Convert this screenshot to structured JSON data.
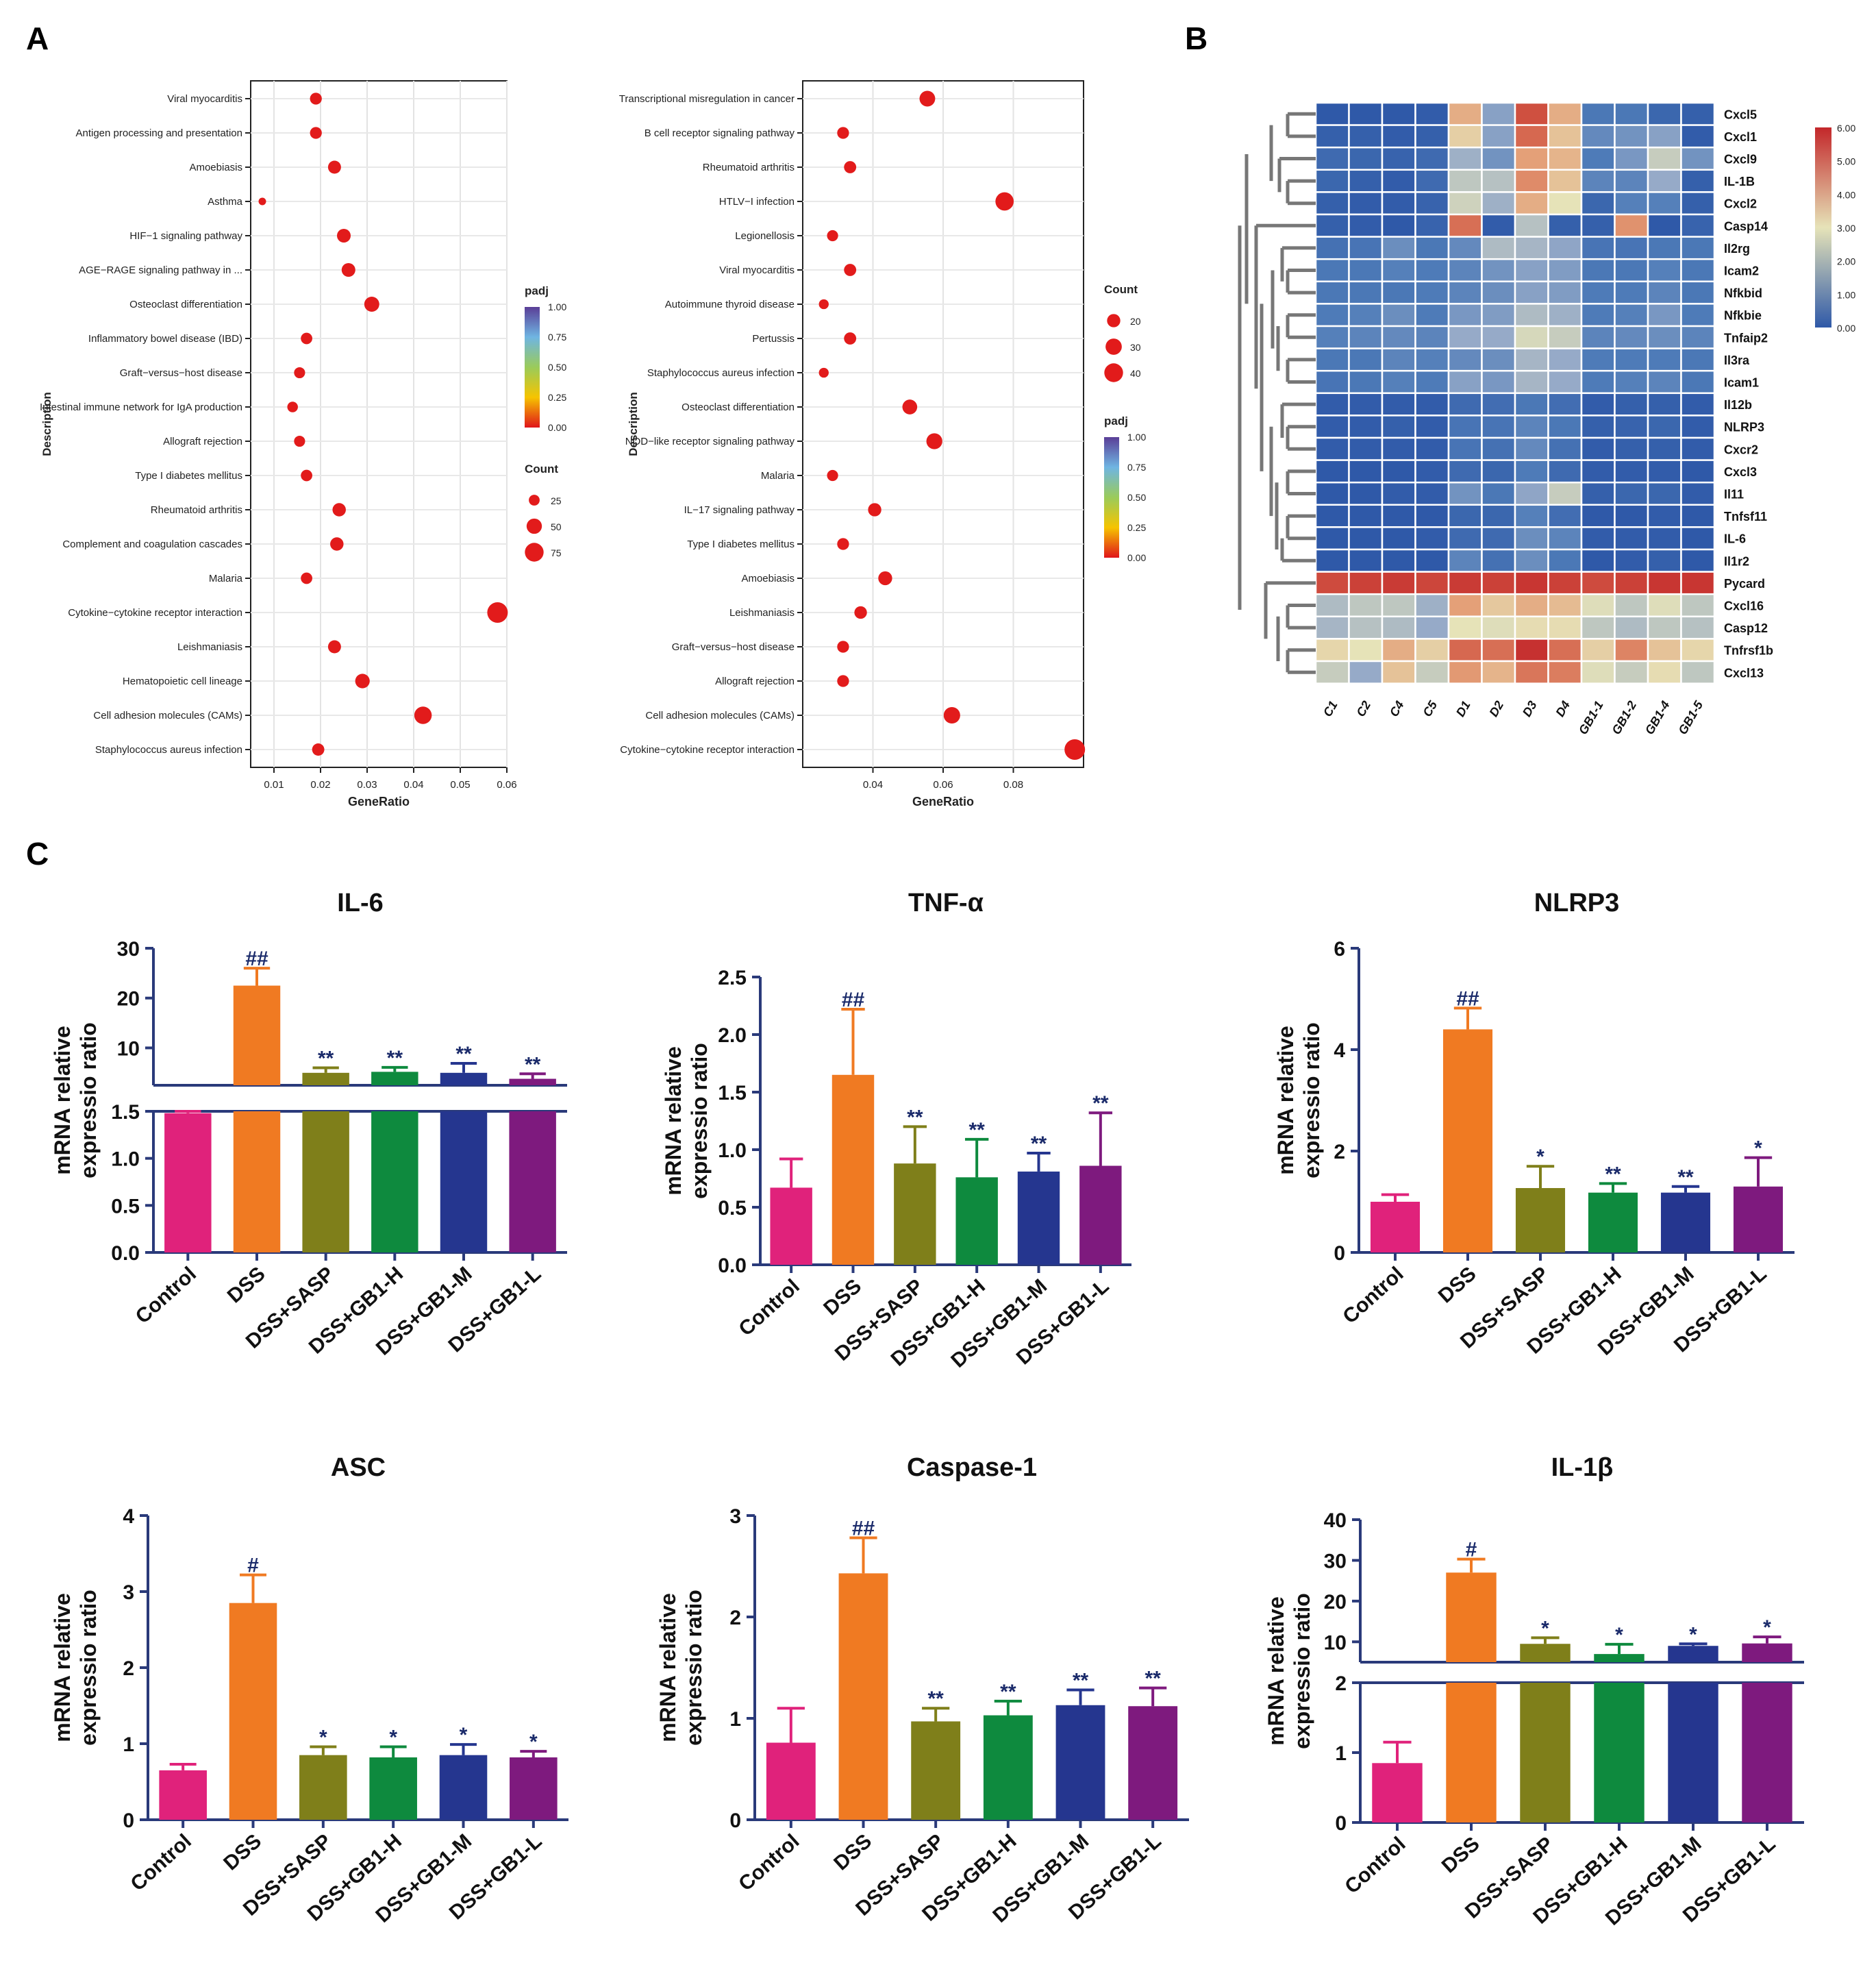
{
  "panel_letters": {
    "a": "A",
    "b": "B",
    "c": "C"
  },
  "colors": {
    "Control": "#E0227B",
    "DSS": "#F07A22",
    "DSS+SASP": "#7F7F1A",
    "DSS+GB1-H": "#0E8A3E",
    "DSS+GB1-M": "#25368F",
    "DSS+GB1-L": "#7E1A7E",
    "axis": "#2A3A7A",
    "dot": "#E21B1B"
  },
  "chart_data": [
    {
      "id": "kegg_left",
      "type": "scatter",
      "panel": "A",
      "xlabel": "GeneRatio",
      "ylabel": "Description",
      "xlim": [
        0.005,
        0.06
      ],
      "xticks": [
        0.01,
        0.02,
        0.03,
        0.04,
        0.05,
        0.06
      ],
      "xtick_labels": [
        "0.01",
        "0.02",
        "0.03",
        "0.04",
        "0.05",
        "0.06"
      ],
      "points": [
        {
          "term": "Viral myocarditis",
          "x": 0.019,
          "count": 30
        },
        {
          "term": "Antigen processing and presentation",
          "x": 0.019,
          "count": 30
        },
        {
          "term": "Amoebiasis",
          "x": 0.023,
          "count": 36
        },
        {
          "term": "Asthma",
          "x": 0.0075,
          "count": 12
        },
        {
          "term": "HIF−1 signaling pathway",
          "x": 0.025,
          "count": 40
        },
        {
          "term": "AGE−RAGE signaling pathway in ...",
          "x": 0.026,
          "count": 40
        },
        {
          "term": "Osteoclast differentiation",
          "x": 0.031,
          "count": 48
        },
        {
          "term": "Inflammatory bowel disease (IBD)",
          "x": 0.017,
          "count": 28
        },
        {
          "term": "Graft−versus−host disease",
          "x": 0.0155,
          "count": 26
        },
        {
          "term": "Intestinal immune network for IgA production",
          "x": 0.014,
          "count": 24
        },
        {
          "term": "Allograft rejection",
          "x": 0.0155,
          "count": 26
        },
        {
          "term": "Type I diabetes mellitus",
          "x": 0.017,
          "count": 28
        },
        {
          "term": "Rheumatoid arthritis",
          "x": 0.024,
          "count": 38
        },
        {
          "term": "Complement and coagulation cascades",
          "x": 0.0235,
          "count": 38
        },
        {
          "term": "Malaria",
          "x": 0.017,
          "count": 28
        },
        {
          "term": "Cytokine−cytokine receptor interaction",
          "x": 0.058,
          "count": 90
        },
        {
          "term": "Leishmaniasis",
          "x": 0.023,
          "count": 36
        },
        {
          "term": "Hematopoietic cell lineage",
          "x": 0.029,
          "count": 45
        },
        {
          "term": "Cell adhesion molecules (CAMs)",
          "x": 0.042,
          "count": 65
        },
        {
          "term": "Staphylococcus aureus infection",
          "x": 0.0195,
          "count": 32
        }
      ],
      "padj_legend": {
        "title": "padj",
        "ticks": [
          "1.00",
          "0.75",
          "0.50",
          "0.25",
          "0.00"
        ]
      },
      "count_legend": {
        "title": "Count",
        "items": [
          {
            "label": "25",
            "value": 25
          },
          {
            "label": "50",
            "value": 50
          },
          {
            "label": "75",
            "value": 75
          }
        ]
      }
    },
    {
      "id": "kegg_right",
      "type": "scatter",
      "panel": "A",
      "xlabel": "GeneRatio",
      "ylabel": "Description",
      "xlim": [
        0.02,
        0.1
      ],
      "xticks": [
        0.04,
        0.06,
        0.08
      ],
      "xtick_labels": [
        "0.04",
        "0.06",
        "0.08"
      ],
      "points": [
        {
          "term": "Transcriptional misregulation in cancer",
          "x": 0.0555,
          "count": 28
        },
        {
          "term": "B cell receptor signaling pathway",
          "x": 0.0315,
          "count": 16
        },
        {
          "term": "Rheumatoid arthritis",
          "x": 0.0335,
          "count": 17
        },
        {
          "term": "HTLV−I infection",
          "x": 0.0775,
          "count": 38
        },
        {
          "term": "Legionellosis",
          "x": 0.0285,
          "count": 14
        },
        {
          "term": "Viral myocarditis",
          "x": 0.0335,
          "count": 17
        },
        {
          "term": "Autoimmune thyroid disease",
          "x": 0.026,
          "count": 11
        },
        {
          "term": "Pertussis",
          "x": 0.0335,
          "count": 17
        },
        {
          "term": "Staphylococcus aureus infection",
          "x": 0.026,
          "count": 11
        },
        {
          "term": "Osteoclast differentiation",
          "x": 0.0505,
          "count": 25
        },
        {
          "term": "NOD−like receptor signaling pathway",
          "x": 0.0575,
          "count": 29
        },
        {
          "term": "Malaria",
          "x": 0.0285,
          "count": 14
        },
        {
          "term": "IL−17 signaling pathway",
          "x": 0.0405,
          "count": 20
        },
        {
          "term": "Type I diabetes mellitus",
          "x": 0.0315,
          "count": 16
        },
        {
          "term": "Amoebiasis",
          "x": 0.0435,
          "count": 22
        },
        {
          "term": "Leishmaniasis",
          "x": 0.0365,
          "count": 18
        },
        {
          "term": "Graft−versus−host disease",
          "x": 0.0315,
          "count": 16
        },
        {
          "term": "Allograft rejection",
          "x": 0.0315,
          "count": 16
        },
        {
          "term": "Cell adhesion molecules (CAMs)",
          "x": 0.0625,
          "count": 31
        },
        {
          "term": "Cytokine−cytokine receptor interaction",
          "x": 0.0975,
          "count": 48
        }
      ],
      "count_legend": {
        "title": "Count",
        "items": [
          {
            "label": "20",
            "value": 20
          },
          {
            "label": "30",
            "value": 30
          },
          {
            "label": "40",
            "value": 40
          }
        ]
      },
      "padj_legend": {
        "title": "padj",
        "ticks": [
          "1.00",
          "0.75",
          "0.50",
          "0.25",
          "0.00"
        ]
      }
    },
    {
      "id": "heatmap",
      "type": "heatmap",
      "panel": "B",
      "columns": [
        "C1",
        "C2",
        "C4",
        "C5",
        "D1",
        "D2",
        "D3",
        "D4",
        "GB1-1",
        "GB1-2",
        "GB1-4",
        "GB1-5"
      ],
      "rows": [
        "Cxcl5",
        "Cxcl1",
        "Cxcl9",
        "IL-1B",
        "Cxcl2",
        "Casp14",
        "Il2rg",
        "Icam2",
        "Nfkbid",
        "Nfkbie",
        "Tnfaip2",
        "Il3ra",
        "Icam1",
        "Il12b",
        "NLRP3",
        "Cxcr2",
        "Cxcl3",
        "Il11",
        "Tnfsf11",
        "IL-6",
        "Il1r2",
        "Pycard",
        "Cxcl16",
        "Casp12",
        "Tnfrsf1b",
        "Cxcl13"
      ],
      "values": [
        [
          0.0,
          0.0,
          0.0,
          0.1,
          3.8,
          1.8,
          5.2,
          3.8,
          0.9,
          0.9,
          0.4,
          0.2
        ],
        [
          0.2,
          0.2,
          0.1,
          0.2,
          3.3,
          1.8,
          4.8,
          3.5,
          1.3,
          1.5,
          1.8,
          0.1
        ],
        [
          0.5,
          0.4,
          0.3,
          0.5,
          2.1,
          1.5,
          4.0,
          3.7,
          1.0,
          1.6,
          2.6,
          1.5
        ],
        [
          0.4,
          0.2,
          0.1,
          0.5,
          2.5,
          2.4,
          4.3,
          3.5,
          1.2,
          1.2,
          2.0,
          0.2
        ],
        [
          0.2,
          0.1,
          0.1,
          0.3,
          2.7,
          2.1,
          3.8,
          3.0,
          0.4,
          1.1,
          1.1,
          0.2
        ],
        [
          0.2,
          0.1,
          0.0,
          0.3,
          4.7,
          0.1,
          2.4,
          0.2,
          0.2,
          4.2,
          0.0,
          0.3
        ],
        [
          0.7,
          0.8,
          1.4,
          0.9,
          1.3,
          2.3,
          2.2,
          1.9,
          0.8,
          0.8,
          0.9,
          0.9
        ],
        [
          0.9,
          0.9,
          1.1,
          1.0,
          1.2,
          1.5,
          1.8,
          1.7,
          0.9,
          0.9,
          1.1,
          0.9
        ],
        [
          0.9,
          0.9,
          0.9,
          1.0,
          1.2,
          1.4,
          1.8,
          1.7,
          1.0,
          1.0,
          1.2,
          0.9
        ],
        [
          1.0,
          1.1,
          1.4,
          1.0,
          1.6,
          1.7,
          2.3,
          2.1,
          1.0,
          1.1,
          1.6,
          1.0
        ],
        [
          1.1,
          1.2,
          1.3,
          1.2,
          2.0,
          2.0,
          2.8,
          2.6,
          1.2,
          1.3,
          1.4,
          1.2
        ],
        [
          0.9,
          0.9,
          1.2,
          1.1,
          1.3,
          1.4,
          2.2,
          2.0,
          1.0,
          1.0,
          1.0,
          0.9
        ],
        [
          0.8,
          0.9,
          1.1,
          1.0,
          1.8,
          1.6,
          2.2,
          2.0,
          1.0,
          1.1,
          1.2,
          0.9
        ],
        [
          0.1,
          0.1,
          0.1,
          0.1,
          0.5,
          0.6,
          0.9,
          0.6,
          0.1,
          0.2,
          0.2,
          0.1
        ],
        [
          0.1,
          0.1,
          0.2,
          0.1,
          0.8,
          0.8,
          1.2,
          0.9,
          0.2,
          0.3,
          0.4,
          0.1
        ],
        [
          0.1,
          0.1,
          0.1,
          0.1,
          0.8,
          0.7,
          1.3,
          0.7,
          0.1,
          0.2,
          0.2,
          0.1
        ],
        [
          0.0,
          0.0,
          0.0,
          0.1,
          0.5,
          0.4,
          1.0,
          0.5,
          0.1,
          0.1,
          0.1,
          0.0
        ],
        [
          0.0,
          0.0,
          0.1,
          0.1,
          1.5,
          0.9,
          1.9,
          2.6,
          0.2,
          0.4,
          0.4,
          0.1
        ],
        [
          0.0,
          0.0,
          0.0,
          0.0,
          0.4,
          0.4,
          1.1,
          0.6,
          0.0,
          0.0,
          0.1,
          0.0
        ],
        [
          0.0,
          0.0,
          0.0,
          0.1,
          0.5,
          0.5,
          1.4,
          1.2,
          0.1,
          0.1,
          0.1,
          0.0
        ],
        [
          0.0,
          0.0,
          0.0,
          0.0,
          1.2,
          0.7,
          1.4,
          0.9,
          0.0,
          0.1,
          0.2,
          0.0
        ],
        [
          5.3,
          5.5,
          5.6,
          5.4,
          5.6,
          5.5,
          5.7,
          5.5,
          5.3,
          5.5,
          5.7,
          5.7
        ],
        [
          2.3,
          2.5,
          2.5,
          2.1,
          4.0,
          3.4,
          3.8,
          3.6,
          2.9,
          2.5,
          2.9,
          2.5
        ],
        [
          2.2,
          2.4,
          2.3,
          2.0,
          3.0,
          2.9,
          3.1,
          3.1,
          2.5,
          2.3,
          2.5,
          2.4
        ],
        [
          3.2,
          3.0,
          3.8,
          3.3,
          4.8,
          4.7,
          5.8,
          4.7,
          3.3,
          4.4,
          3.5,
          3.2
        ],
        [
          2.6,
          2.0,
          3.5,
          2.6,
          4.1,
          3.7,
          4.6,
          4.5,
          2.9,
          2.6,
          3.1,
          2.5
        ]
      ],
      "color_range": [
        0,
        6
      ],
      "color_ticks": [
        "6.00",
        "5.00",
        "4.00",
        "3.00",
        "2.00",
        "1.00",
        "0.00"
      ]
    },
    {
      "id": "bar_il6",
      "type": "bar",
      "panel": "C",
      "title": "IL-6",
      "ylabel": [
        "mRNA relative",
        "expressio ratio"
      ],
      "categories": [
        "Control",
        "DSS",
        "DSS+SASP",
        "DSS+GB1-H",
        "DSS+GB1-M",
        "DSS+GB1-L"
      ],
      "values": [
        1.48,
        22.5,
        5.0,
        5.2,
        5.0,
        3.8
      ],
      "errors": [
        0.02,
        3.5,
        1.0,
        0.9,
        1.9,
        1.0
      ],
      "marks": [
        "",
        "##",
        "**",
        "**",
        "**",
        "**"
      ],
      "broken": true,
      "lower": {
        "lim": [
          0,
          1.5
        ],
        "ticks": [
          0,
          0.5,
          1.0,
          1.5
        ],
        "labels": [
          "0.0",
          "0.5",
          "1.0",
          "1.5"
        ]
      },
      "upper": {
        "lim": [
          2.5,
          30
        ],
        "ticks": [
          10,
          20,
          30
        ],
        "labels": [
          "10",
          "20",
          "30"
        ]
      }
    },
    {
      "id": "bar_tnf",
      "type": "bar",
      "panel": "C",
      "title": "TNF-α",
      "ylabel": [
        "mRNA relative",
        "expressio ratio"
      ],
      "categories": [
        "Control",
        "DSS",
        "DSS+SASP",
        "DSS+GB1-H",
        "DSS+GB1-M",
        "DSS+GB1-L"
      ],
      "values": [
        0.67,
        1.65,
        0.88,
        0.76,
        0.81,
        0.86
      ],
      "errors": [
        0.25,
        0.57,
        0.32,
        0.33,
        0.16,
        0.46
      ],
      "marks": [
        "",
        "##",
        "**",
        "**",
        "**",
        "**"
      ],
      "ylim": [
        0,
        2.5
      ],
      "yticks": [
        0,
        0.5,
        1.0,
        1.5,
        2.0,
        2.5
      ],
      "ytick_labels": [
        "0.0",
        "0.5",
        "1.0",
        "1.5",
        "2.0",
        "2.5"
      ]
    },
    {
      "id": "bar_nlrp3",
      "type": "bar",
      "panel": "C",
      "title": "NLRP3",
      "ylabel": [
        "mRNA relative",
        "expressio ratio"
      ],
      "categories": [
        "Control",
        "DSS",
        "DSS+SASP",
        "DSS+GB1-H",
        "DSS+GB1-M",
        "DSS+GB1-L"
      ],
      "values": [
        1.0,
        4.4,
        1.27,
        1.18,
        1.18,
        1.3
      ],
      "errors": [
        0.14,
        0.42,
        0.43,
        0.18,
        0.12,
        0.57
      ],
      "marks": [
        "",
        "##",
        "*",
        "**",
        "**",
        "*"
      ],
      "ylim": [
        0,
        6
      ],
      "yticks": [
        0,
        2,
        4,
        6
      ],
      "ytick_labels": [
        "0",
        "2",
        "4",
        "6"
      ]
    },
    {
      "id": "bar_asc",
      "type": "bar",
      "panel": "C",
      "title": "ASC",
      "ylabel": [
        "mRNA relative",
        "expressio ratio"
      ],
      "categories": [
        "Control",
        "DSS",
        "DSS+SASP",
        "DSS+GB1-H",
        "DSS+GB1-M",
        "DSS+GB1-L"
      ],
      "values": [
        0.65,
        2.85,
        0.85,
        0.82,
        0.85,
        0.82
      ],
      "errors": [
        0.08,
        0.37,
        0.11,
        0.14,
        0.14,
        0.08
      ],
      "marks": [
        "",
        "#",
        "*",
        "*",
        "*",
        "*"
      ],
      "ylim": [
        0,
        4
      ],
      "yticks": [
        0,
        1,
        2,
        3,
        4
      ],
      "ytick_labels": [
        "0",
        "1",
        "2",
        "3",
        "4"
      ]
    },
    {
      "id": "bar_casp1",
      "type": "bar",
      "panel": "C",
      "title": "Caspase-1",
      "ylabel": [
        "mRNA relative",
        "expressio ratio"
      ],
      "categories": [
        "Control",
        "DSS",
        "DSS+SASP",
        "DSS+GB1-H",
        "DSS+GB1-M",
        "DSS+GB1-L"
      ],
      "values": [
        0.76,
        2.43,
        0.97,
        1.03,
        1.13,
        1.12
      ],
      "errors": [
        0.34,
        0.35,
        0.13,
        0.14,
        0.15,
        0.18
      ],
      "marks": [
        "",
        "##",
        "**",
        "**",
        "**",
        "**"
      ],
      "ylim": [
        0,
        3
      ],
      "yticks": [
        0,
        1,
        2,
        3
      ],
      "ytick_labels": [
        "0",
        "1",
        "2",
        "3"
      ]
    },
    {
      "id": "bar_il1b",
      "type": "bar",
      "panel": "C",
      "title": "IL-1β",
      "ylabel": [
        "mRNA relative",
        "expressio ratio"
      ],
      "categories": [
        "Control",
        "DSS",
        "DSS+SASP",
        "DSS+GB1-H",
        "DSS+GB1-M",
        "DSS+GB1-L"
      ],
      "values": [
        0.85,
        27.0,
        9.5,
        7.0,
        9.0,
        9.6
      ],
      "errors": [
        0.3,
        3.3,
        1.5,
        2.4,
        0.5,
        1.6
      ],
      "marks": [
        "",
        "#",
        "*",
        "*",
        "*",
        "*"
      ],
      "broken": true,
      "lower": {
        "lim": [
          0,
          2
        ],
        "ticks": [
          0,
          1,
          2
        ],
        "labels": [
          "0",
          "1",
          "2"
        ]
      },
      "upper": {
        "lim": [
          5,
          40
        ],
        "ticks": [
          10,
          20,
          30,
          40
        ],
        "labels": [
          "10",
          "20",
          "30",
          "40"
        ]
      }
    }
  ]
}
